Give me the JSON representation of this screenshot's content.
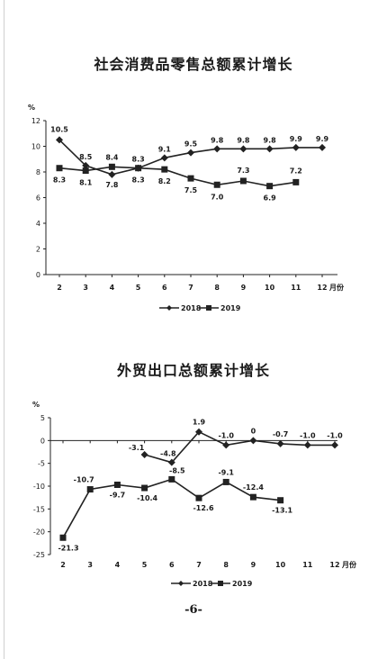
{
  "chart_data": [
    {
      "type": "line",
      "title": "社会消费品零售总额累计增长",
      "ylabel": "%",
      "xunit": "月份",
      "categories": [
        "2",
        "3",
        "4",
        "5",
        "6",
        "7",
        "8",
        "9",
        "10",
        "11",
        "12"
      ],
      "x_tick_labels": [
        "2",
        "3",
        "4",
        "5",
        "6",
        "7",
        "8",
        "9",
        "10",
        "11",
        "12"
      ],
      "y_ticks": [
        "0",
        "2",
        "4",
        "6",
        "8",
        "10",
        "12"
      ],
      "ylim": [
        0,
        12
      ],
      "grid": false,
      "legend": "bottom",
      "series": [
        {
          "name": "2018",
          "marker": "diamond",
          "values": [
            10.5,
            8.5,
            7.8,
            8.3,
            9.1,
            9.5,
            9.8,
            9.8,
            9.8,
            9.9,
            9.9
          ],
          "labels": [
            "10.5",
            "8.5",
            "7.8",
            "8.3",
            "9.1",
            "9.5",
            "9.8",
            "9.8",
            "9.8",
            "9.9",
            "9.9"
          ]
        },
        {
          "name": "2019",
          "marker": "square",
          "values": [
            8.3,
            8.1,
            8.4,
            8.3,
            8.2,
            7.5,
            7.0,
            7.3,
            6.9,
            7.2,
            null
          ],
          "labels": [
            "8.3",
            "8.1",
            "8.4",
            "8.3",
            "8.2",
            "7.5",
            "7.0",
            "7.3",
            "6.9",
            "7.2",
            ""
          ]
        }
      ]
    },
    {
      "type": "line",
      "title": "外贸出口总额累计增长",
      "ylabel": "%",
      "xunit": "月份",
      "categories": [
        "2",
        "3",
        "4",
        "5",
        "6",
        "7",
        "8",
        "9",
        "10",
        "11",
        "12"
      ],
      "x_tick_labels": [
        "2",
        "3",
        "4",
        "5",
        "6",
        "7",
        "8",
        "9",
        "10",
        "11",
        "12"
      ],
      "y_ticks": [
        "5",
        "0",
        "-5",
        "-10",
        "-15",
        "-20",
        "-25"
      ],
      "ylim": [
        -25,
        5
      ],
      "grid": false,
      "legend": "bottom",
      "series": [
        {
          "name": "2018",
          "marker": "diamond",
          "values": [
            null,
            null,
            null,
            -3.1,
            -4.8,
            1.9,
            -1.0,
            0,
            -0.7,
            -1.0,
            -1.0
          ],
          "labels": [
            "",
            "",
            "",
            "-3.1",
            "-4.8",
            "1.9",
            "-1.0",
            "0",
            "-0.7",
            "-1.0",
            "-1.0"
          ]
        },
        {
          "name": "2019",
          "marker": "square",
          "values": [
            -21.3,
            -10.7,
            -9.7,
            -10.4,
            -8.5,
            -12.6,
            -9.1,
            -12.4,
            -13.1,
            null,
            null
          ],
          "labels": [
            "-21.3",
            "-10.7",
            "-9.7",
            "-10.4",
            "-8.5",
            "-12.6",
            "-9.1",
            "-12.4",
            "-13.1",
            "",
            ""
          ]
        }
      ]
    }
  ],
  "page_number": "-6-"
}
